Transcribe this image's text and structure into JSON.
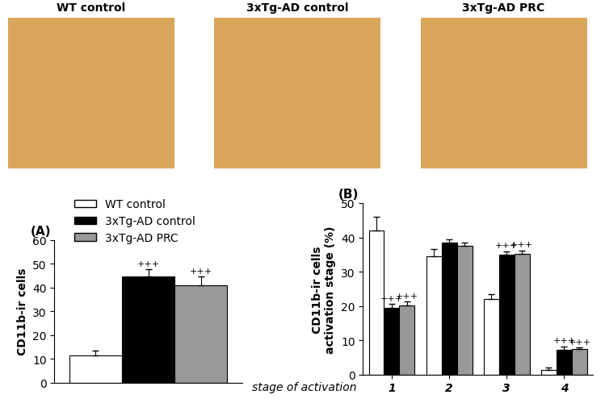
{
  "images": {
    "titles": [
      "WT control",
      "3xTg-AD control",
      "3xTg-AD PRC"
    ]
  },
  "chart_data": [
    {
      "type": "bar",
      "title": "(A)",
      "ylabel": "CD11b-ir cells",
      "categories": [
        null
      ],
      "series": [
        {
          "name": "WT control",
          "color": "#ffffff",
          "values": [
            11.5
          ],
          "errors": [
            2.0
          ],
          "annotations": [
            null
          ]
        },
        {
          "name": "3xTg-AD control",
          "color": "#000000",
          "values": [
            44.5
          ],
          "errors": [
            3.0
          ],
          "annotations": [
            "+++"
          ]
        },
        {
          "name": "3xTg-AD PRC",
          "color": "#999999",
          "values": [
            41.0
          ],
          "errors": [
            3.5
          ],
          "annotations": [
            "+++"
          ]
        }
      ],
      "ylim": [
        0,
        60
      ],
      "yticks": [
        0,
        10,
        20,
        30,
        40,
        50,
        60
      ],
      "legend": "upper left",
      "tick_labels": "y",
      "grid": false
    },
    {
      "type": "bar",
      "title": "(B)",
      "ylabel": "CD11b-ir cells\nactivation stage (%)",
      "xlabel": "stage of activation",
      "categories": [
        "1",
        "2",
        "3",
        "4"
      ],
      "series": [
        {
          "name": "WT control",
          "color": "#ffffff",
          "values": [
            42.0,
            34.5,
            22.0,
            1.2
          ],
          "errors": [
            4.0,
            2.0,
            1.5,
            0.8
          ],
          "annotations": [
            null,
            null,
            null,
            null
          ]
        },
        {
          "name": "3xTg-AD control",
          "color": "#000000",
          "values": [
            19.5,
            38.5,
            35.0,
            7.2
          ],
          "errors": [
            1.0,
            0.8,
            1.0,
            1.0
          ],
          "annotations": [
            "+++",
            null,
            "+++",
            "+++"
          ]
        },
        {
          "name": "3xTg-AD PRC",
          "color": "#999999",
          "values": [
            20.2,
            37.5,
            35.2,
            7.3
          ],
          "errors": [
            1.0,
            1.0,
            1.0,
            0.5
          ],
          "annotations": [
            "+++",
            null,
            "+++",
            "+++"
          ]
        }
      ],
      "ylim": [
        0,
        50
      ],
      "yticks": [
        0,
        10,
        20,
        30,
        40,
        50
      ],
      "grid": false
    }
  ]
}
